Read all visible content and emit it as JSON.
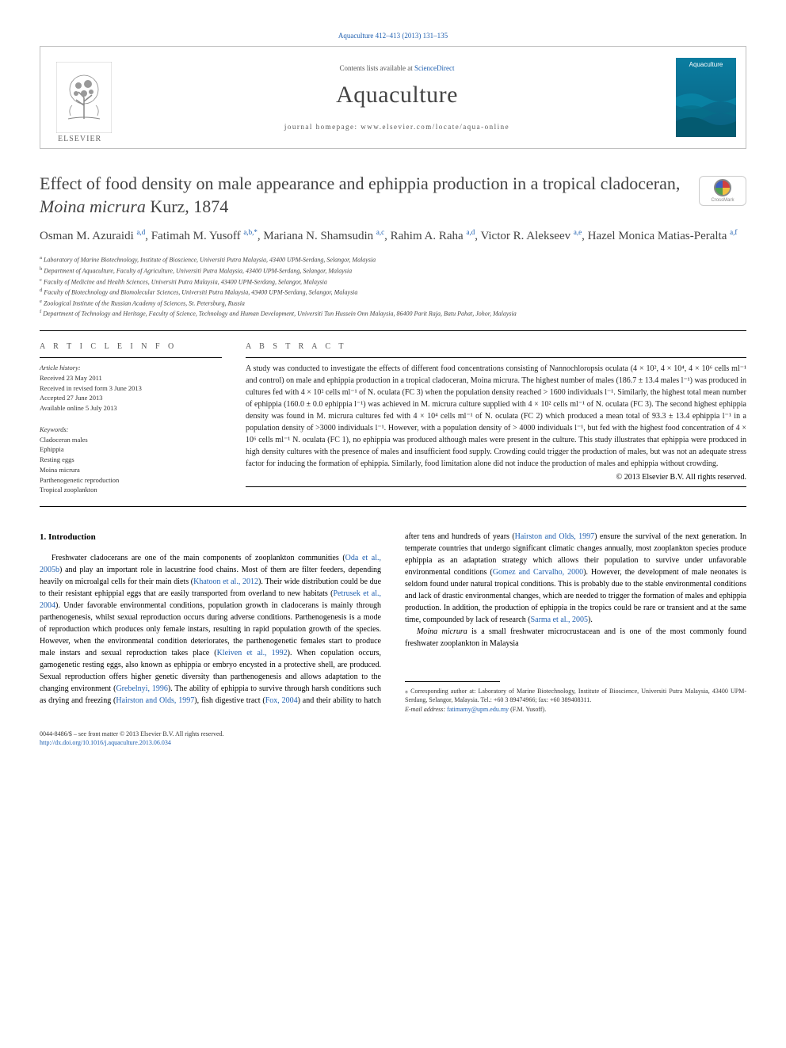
{
  "header": {
    "top_citation": "Aquaculture 412–413 (2013) 131–135",
    "contents_text": "Contents lists available at ",
    "contents_link": "ScienceDirect",
    "journal_name": "Aquaculture",
    "homepage_text": "journal homepage: www.elsevier.com/locate/aqua-online",
    "publisher": "ELSEVIER",
    "cover_label": "Aquaculture"
  },
  "article": {
    "title_prefix": "Effect of food density on male appearance and ephippia production in a tropical cladoceran, ",
    "title_species": "Moina micrura",
    "title_suffix": " Kurz, 1874",
    "crossmark_label": "CrossMark"
  },
  "authors": [
    {
      "name": "Osman M. Azuraidi",
      "sup": "a,d"
    },
    {
      "name": "Fatimah M. Yusoff",
      "sup": "a,b,*"
    },
    {
      "name": "Mariana N. Shamsudin",
      "sup": "a,c"
    },
    {
      "name": "Rahim A. Raha",
      "sup": "a,d"
    },
    {
      "name": "Victor R. Alekseev",
      "sup": "a,e"
    },
    {
      "name": "Hazel Monica Matias-Peralta",
      "sup": "a,f"
    }
  ],
  "affiliations": [
    {
      "sup": "a",
      "text": "Laboratory of Marine Biotechnology, Institute of Bioscience, Universiti Putra Malaysia, 43400 UPM-Serdang, Selangor, Malaysia"
    },
    {
      "sup": "b",
      "text": "Department of Aquaculture, Faculty of Agriculture, Universiti Putra Malaysia, 43400 UPM-Serdang, Selangor, Malaysia"
    },
    {
      "sup": "c",
      "text": "Faculty of Medicine and Health Sciences, Universiti Putra Malaysia, 43400 UPM-Serdang, Selangor, Malaysia"
    },
    {
      "sup": "d",
      "text": "Faculty of Biotechnology and Biomolecular Sciences, Universiti Putra Malaysia, 43400 UPM-Serdang, Selangor, Malaysia"
    },
    {
      "sup": "e",
      "text": "Zoological Institute of the Russian Academy of Sciences, St. Petersburg, Russia"
    },
    {
      "sup": "f",
      "text": "Department of Technology and Heritage, Faculty of Science, Technology and Human Development, Universiti Tun Hussein Onn Malaysia, 86400 Parit Raja, Batu Pahat, Johor, Malaysia"
    }
  ],
  "info": {
    "heading": "A R T I C L E   I N F O",
    "history_label": "Article history:",
    "history": [
      "Received 23 May 2011",
      "Received in revised form 3 June 2013",
      "Accepted 27 June 2013",
      "Available online 5 July 2013"
    ],
    "keywords_label": "Keywords:",
    "keywords": [
      "Cladoceran males",
      "Ephippia",
      "Resting eggs",
      "Moina micrura",
      "Parthenogenetic reproduction",
      "Tropical zooplankton"
    ]
  },
  "abstract": {
    "heading": "A B S T R A C T",
    "text": "A study was conducted to investigate the effects of different food concentrations consisting of Nannochloropsis oculata (4 × 10², 4 × 10⁴, 4 × 10⁶ cells ml⁻¹ and control) on male and ephippia production in a tropical cladoceran, Moina micrura. The highest number of males (186.7 ± 13.4 males l⁻¹) was produced in cultures fed with 4 × 10² cells ml⁻¹ of N. oculata (FC 3) when the population density reached > 1600 individuals l⁻¹. Similarly, the highest total mean number of ephippia (160.0 ± 0.0 ephippia l⁻¹) was achieved in M. micrura culture supplied with 4 × 10² cells ml⁻¹ of N. oculata (FC 3). The second highest ephippia density was found in M. micrura cultures fed with 4 × 10⁴ cells ml⁻¹ of N. oculata (FC 2) which produced a mean total of 93.3 ± 13.4 ephippia l⁻¹ in a population density of >3000 individuals l⁻¹. However, with a population density of > 4000 individuals l⁻¹, but fed with the highest food concentration of 4 × 10⁶ cells ml⁻¹ N. oculata (FC 1), no ephippia was produced although males were present in the culture. This study illustrates that ephippia were produced in high density cultures with the presence of males and insufficient food supply. Crowding could trigger the production of males, but was not an adequate stress factor for inducing the formation of ephippia. Similarly, food limitation alone did not induce the production of males and ephippia without crowding.",
    "copyright": "© 2013 Elsevier B.V. All rights reserved."
  },
  "body": {
    "heading": "1. Introduction",
    "p1_a": "Freshwater cladocerans are one of the main components of zooplankton communities (",
    "p1_link1": "Oda et al., 2005b",
    "p1_b": ") and play an important role in lacustrine food chains. Most of them are filter feeders, depending heavily on microalgal cells for their main diets (",
    "p1_link2": "Khatoon et al., 2012",
    "p1_c": "). Their wide distribution could be due to their resistant ephippial eggs that are easily transported from overland to new habitats (",
    "p1_link3": "Petrusek et al., 2004",
    "p1_d": "). Under favorable environmental conditions, population growth in cladocerans is mainly through parthenogenesis, whilst sexual reproduction occurs during adverse conditions. Parthenogenesis is a mode of reproduction which produces only female instars, resulting in rapid population growth of the species. However, when the environmental condition deteriorates, the parthenogenetic females start to produce male instars and sexual reproduction takes place (",
    "p1_link4": "Kleiven et al., 1992",
    "p1_e": "). When copulation occurs, gamogenetic resting eggs, also known as ephippia or embryo encysted in a protective shell, are produced. Sexual reproduction offers higher genetic diversity than parthenogenesis and allows adaptation to the changing environment (",
    "p1_link5": "Grebelnyi, 1996",
    "p1_f": "). The ability of ephippia to survive through harsh conditions such as drying and freezing (",
    "p1_link6": "Hairston and Olds, 1997",
    "p1_g": "), fish digestive tract (",
    "p1_link7": "Fox, 2004",
    "p1_h": ") and their ability to hatch after tens and hundreds of years (",
    "p1_link8": "Hairston and Olds, 1997",
    "p1_i": ") ensure the survival of the next generation. In temperate countries that undergo significant climatic changes annually, most zooplankton species produce ephippia as an adaptation strategy which allows their population to survive under unfavorable environmental conditions (",
    "p1_link9": "Gomez and Carvalho, 2000",
    "p1_j": "). However, the development of male neonates is seldom found under natural tropical conditions. This is probably due to the stable environmental conditions and lack of drastic environmental changes, which are needed to trigger the formation of males and ephippia production. In addition, the production of ephippia in the tropics could be rare or transient and at the same time, compounded by lack of research (",
    "p1_link10": "Sarma et al., 2005",
    "p1_k": ").",
    "p2_species": "Moina micrura",
    "p2_text": " is a small freshwater microcrustacean and is one of the most commonly found freshwater zooplankton in Malaysia"
  },
  "footnotes": {
    "corresponding": "⁎ Corresponding author at: Laboratory of Marine Biotechnology, Institute of Bioscience, Universiti Putra Malaysia, 43400 UPM-Serdang, Selangor, Malaysia. Tel.: +60 3 89474966; fax: +60 389408311.",
    "email_label": "E-mail address: ",
    "email": "fatimamy@upm.edu.my",
    "email_suffix": " (F.M. Yusoff)."
  },
  "footer": {
    "line1": "0044-8486/$ – see front matter © 2013 Elsevier B.V. All rights reserved.",
    "doi": "http://dx.doi.org/10.1016/j.aquaculture.2013.06.034"
  },
  "colors": {
    "link": "#2060b0",
    "text": "#222222",
    "muted": "#555555"
  }
}
